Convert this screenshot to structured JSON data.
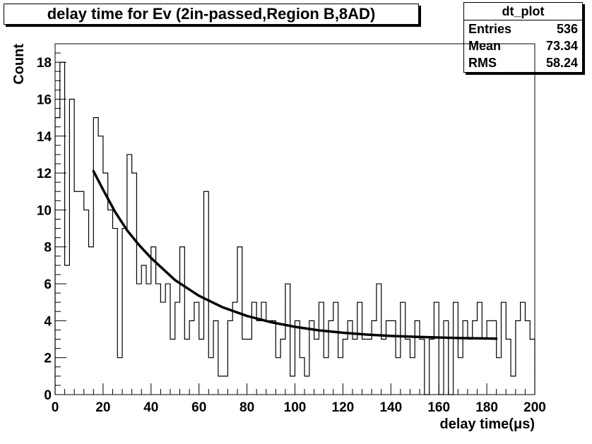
{
  "title": "delay time for Ev (2in-passed,Region B,8AD)",
  "stats": {
    "name": "dt_plot",
    "rows": [
      {
        "label": "Entries",
        "value": "536"
      },
      {
        "label": "Mean",
        "value": "73.34"
      },
      {
        "label": "RMS",
        "value": "58.24"
      }
    ]
  },
  "chart_data": {
    "type": "histogram",
    "title": "delay time for Ev (2in-passed,Region B,8AD)",
    "xlabel": "delay time(μs)",
    "ylabel": "Count",
    "xlim": [
      0,
      200
    ],
    "ylim": [
      0,
      19
    ],
    "xticks": [
      0,
      20,
      40,
      60,
      80,
      100,
      120,
      140,
      160,
      180,
      200
    ],
    "yticks": [
      0,
      2,
      4,
      6,
      8,
      10,
      12,
      14,
      16,
      18
    ],
    "bin_width": 2,
    "bin_start": 0,
    "counts": [
      15,
      18,
      7,
      16,
      11,
      11,
      10,
      8,
      15,
      14,
      12,
      10,
      9,
      2,
      9,
      13,
      12,
      6,
      7,
      6,
      8,
      6,
      5,
      6,
      3,
      5,
      8,
      3,
      4,
      5,
      3,
      11,
      2,
      4,
      1,
      1,
      4,
      5,
      8,
      3,
      3,
      5,
      4,
      5,
      4,
      4,
      2,
      3,
      6,
      1,
      4,
      2,
      1,
      4,
      3,
      5,
      2,
      4,
      5,
      2,
      3,
      4,
      3,
      5,
      3,
      3,
      4,
      6,
      3,
      4,
      4,
      2,
      5,
      3,
      2,
      4,
      3,
      0,
      3,
      5,
      0,
      4,
      0,
      5,
      2,
      4,
      3,
      4,
      5,
      3,
      4,
      4,
      2,
      5,
      3,
      1,
      4,
      5,
      4,
      3
    ],
    "fit": {
      "name": "exponential fit",
      "x": [
        16,
        20,
        25,
        30,
        35,
        40,
        50,
        60,
        70,
        80,
        90,
        100,
        110,
        120,
        130,
        140,
        150,
        160,
        170,
        180,
        184
      ],
      "y": [
        12.1,
        11.1,
        9.9,
        8.9,
        8.1,
        7.4,
        6.2,
        5.35,
        4.72,
        4.26,
        3.92,
        3.67,
        3.48,
        3.35,
        3.25,
        3.18,
        3.13,
        3.09,
        3.06,
        3.04,
        3.03
      ]
    },
    "grid": false
  }
}
